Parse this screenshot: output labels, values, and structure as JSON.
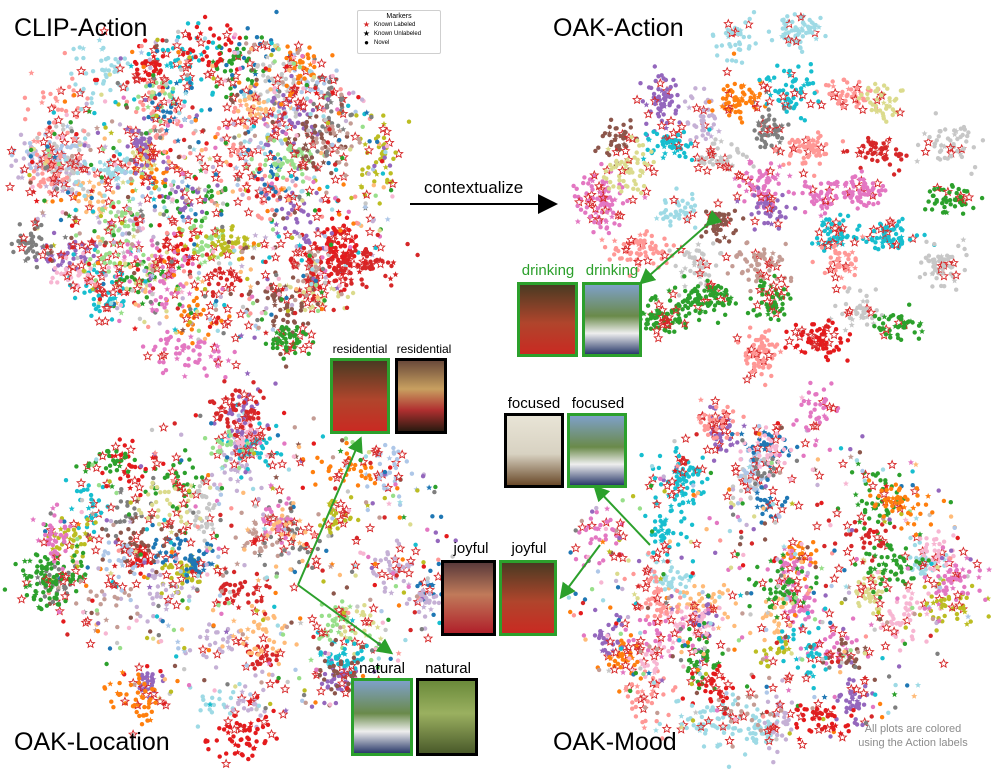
{
  "panels": {
    "clip_action": "CLIP-Action",
    "oak_action": "OAK-Action",
    "oak_location": "OAK-Location",
    "oak_mood": "OAK-Mood"
  },
  "legend": {
    "title": "Markers",
    "items": [
      "Known Labeled",
      "Known Unlabeled",
      "Novel"
    ]
  },
  "arrow_label": "contextualize",
  "labels": {
    "drinking": "drinking",
    "residential": "residential",
    "focused": "focused",
    "joyful": "joyful",
    "natural": "natural"
  },
  "note": {
    "line1": "All plots are colored",
    "line2": "using the Action labels"
  },
  "colors": {
    "arrow_green": "#2ca02c",
    "palette": [
      "#e41a1c",
      "#d62728",
      "#1f77b4",
      "#ff7f0e",
      "#2ca02c",
      "#9467bd",
      "#8c564b",
      "#e377c2",
      "#7f7f7f",
      "#bcbd22",
      "#17becf",
      "#aec7e8",
      "#ffbb78",
      "#98df8a",
      "#ff9896",
      "#c5b0d5",
      "#c49c94",
      "#f7b6d2",
      "#c7c7c7",
      "#dbdb8d",
      "#9edae5"
    ]
  }
}
